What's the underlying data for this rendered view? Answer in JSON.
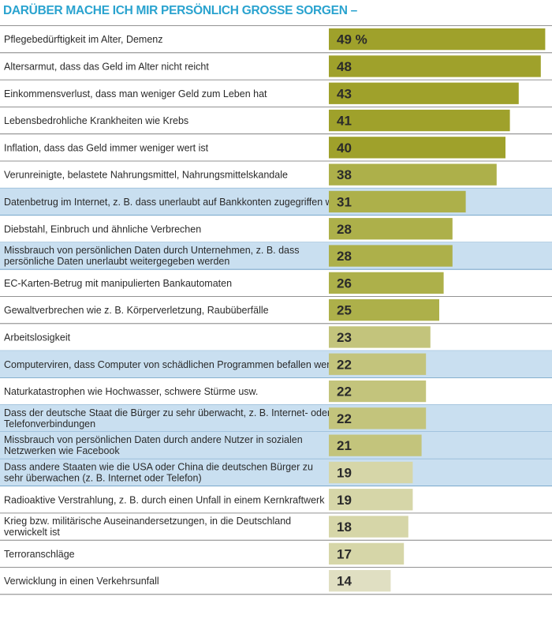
{
  "title": "DARÜBER MACHE ICH MIR PERSÖNLICH GROSSE SORGEN –",
  "colors": {
    "title": "#2aa3cf",
    "row_highlight_bg": "#c9dff0",
    "row_divider": "#5f95bf",
    "bar_shades": [
      "#9fa12b",
      "#adb04a",
      "#c3c47c",
      "#d6d6a8",
      "#e0dfc2"
    ]
  },
  "chart_data": {
    "type": "bar",
    "orientation": "horizontal",
    "value_unit_first": "%",
    "xlim": [
      0,
      50
    ],
    "categories": [
      [
        "Pflegebedürftigkeit im Alter, Demenz"
      ],
      [
        "Altersarmut, dass das Geld im Alter nicht reicht"
      ],
      [
        "Einkommensverlust, dass man weniger Geld zum Leben hat"
      ],
      [
        "Lebensbedrohliche Krankheiten wie Krebs"
      ],
      [
        "Inflation, dass das Geld immer weniger wert ist"
      ],
      [
        "Verunreinigte, belastete Nahrungsmittel, Nahrungsmittelskandale"
      ],
      [
        "Datenbetrug im Internet, z. B. dass unerlaubt auf Bankkonten zugegriffen wird"
      ],
      [
        "Diebstahl, Einbruch und ähnliche Verbrechen"
      ],
      [
        "Missbrauch von persönlichen Daten durch Unternehmen, z. B. dass",
        "persönliche Daten unerlaubt weitergegeben werden"
      ],
      [
        "EC-Karten-Betrug mit manipulierten Bankautomaten"
      ],
      [
        "Gewaltverbrechen wie z. B. Körperverletzung, Raubüberfälle"
      ],
      [
        "Arbeitslosigkeit"
      ],
      [
        "Computerviren, dass Computer von schädlichen Programmen befallen werden"
      ],
      [
        "Naturkatastrophen wie Hochwasser, schwere Stürme usw."
      ],
      [
        "Dass der deutsche Staat die Bürger zu sehr überwacht, z. B. Internet- oder",
        "Telefonverbindungen"
      ],
      [
        "Missbrauch von persönlichen Daten durch andere Nutzer in sozialen",
        "Netzwerken wie Facebook"
      ],
      [
        "Dass andere Staaten wie die USA oder China die deutschen Bürger zu",
        "sehr überwachen (z. B. Internet oder Telefon)"
      ],
      [
        "Radioaktive Verstrahlung, z. B. durch einen Unfall in einem Kernkraftwerk"
      ],
      [
        "Krieg bzw. militärische Auseinandersetzungen, in die Deutschland",
        "verwickelt ist"
      ],
      [
        "Terroranschläge"
      ],
      [
        "Verwicklung in einen Verkehrsunfall"
      ]
    ],
    "values": [
      49,
      48,
      43,
      41,
      40,
      38,
      31,
      28,
      28,
      26,
      25,
      23,
      22,
      22,
      22,
      21,
      19,
      19,
      18,
      17,
      14
    ],
    "highlighted_rows": [
      6,
      8,
      12,
      14,
      15,
      16
    ]
  }
}
